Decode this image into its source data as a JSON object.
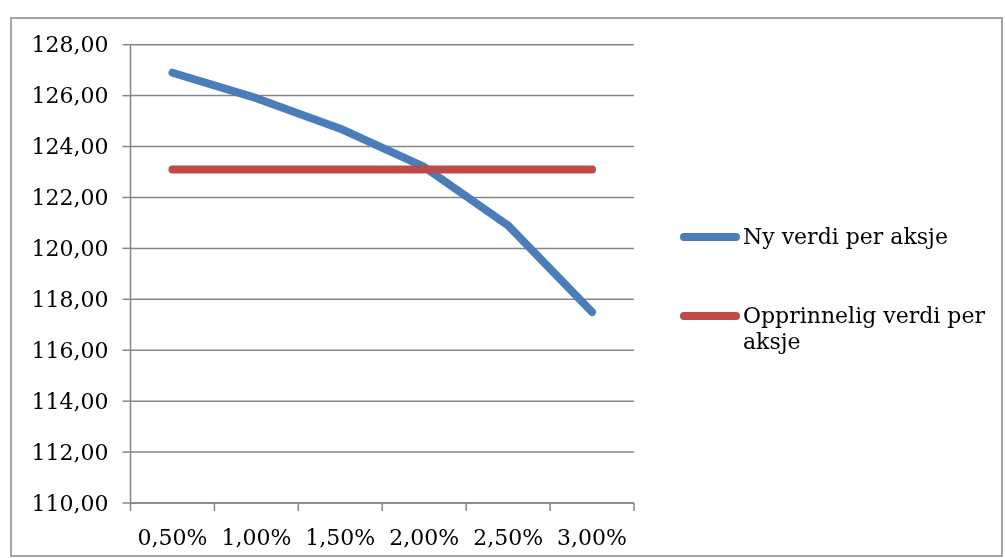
{
  "chart_data": {
    "type": "line",
    "categories": [
      "0,50%",
      "1,00%",
      "1,50%",
      "2,00%",
      "2,50%",
      "3,00%"
    ],
    "series": [
      {
        "name": "Ny verdi per aksje",
        "color": "#4a7ebb",
        "values": [
          126.9,
          125.9,
          124.7,
          123.2,
          120.9,
          117.5
        ]
      },
      {
        "name": "Opprinnelig verdi per aksje",
        "color": "#be4b48",
        "values": [
          123.1,
          123.1,
          123.1,
          123.1,
          123.1,
          123.1
        ]
      }
    ],
    "ylim": [
      110,
      128
    ],
    "yticks": [
      {
        "value": 110,
        "label": "110,00"
      },
      {
        "value": 112,
        "label": "112,00"
      },
      {
        "value": 114,
        "label": "114,00"
      },
      {
        "value": 116,
        "label": "116,00"
      },
      {
        "value": 118,
        "label": "118,00"
      },
      {
        "value": 120,
        "label": "120,00"
      },
      {
        "value": 122,
        "label": "122,00"
      },
      {
        "value": 124,
        "label": "124,00"
      },
      {
        "value": 126,
        "label": "126,00"
      },
      {
        "value": 128,
        "label": "128,00"
      }
    ],
    "grid": "y",
    "legend": "right",
    "marker": "none",
    "line_style": "solid"
  }
}
